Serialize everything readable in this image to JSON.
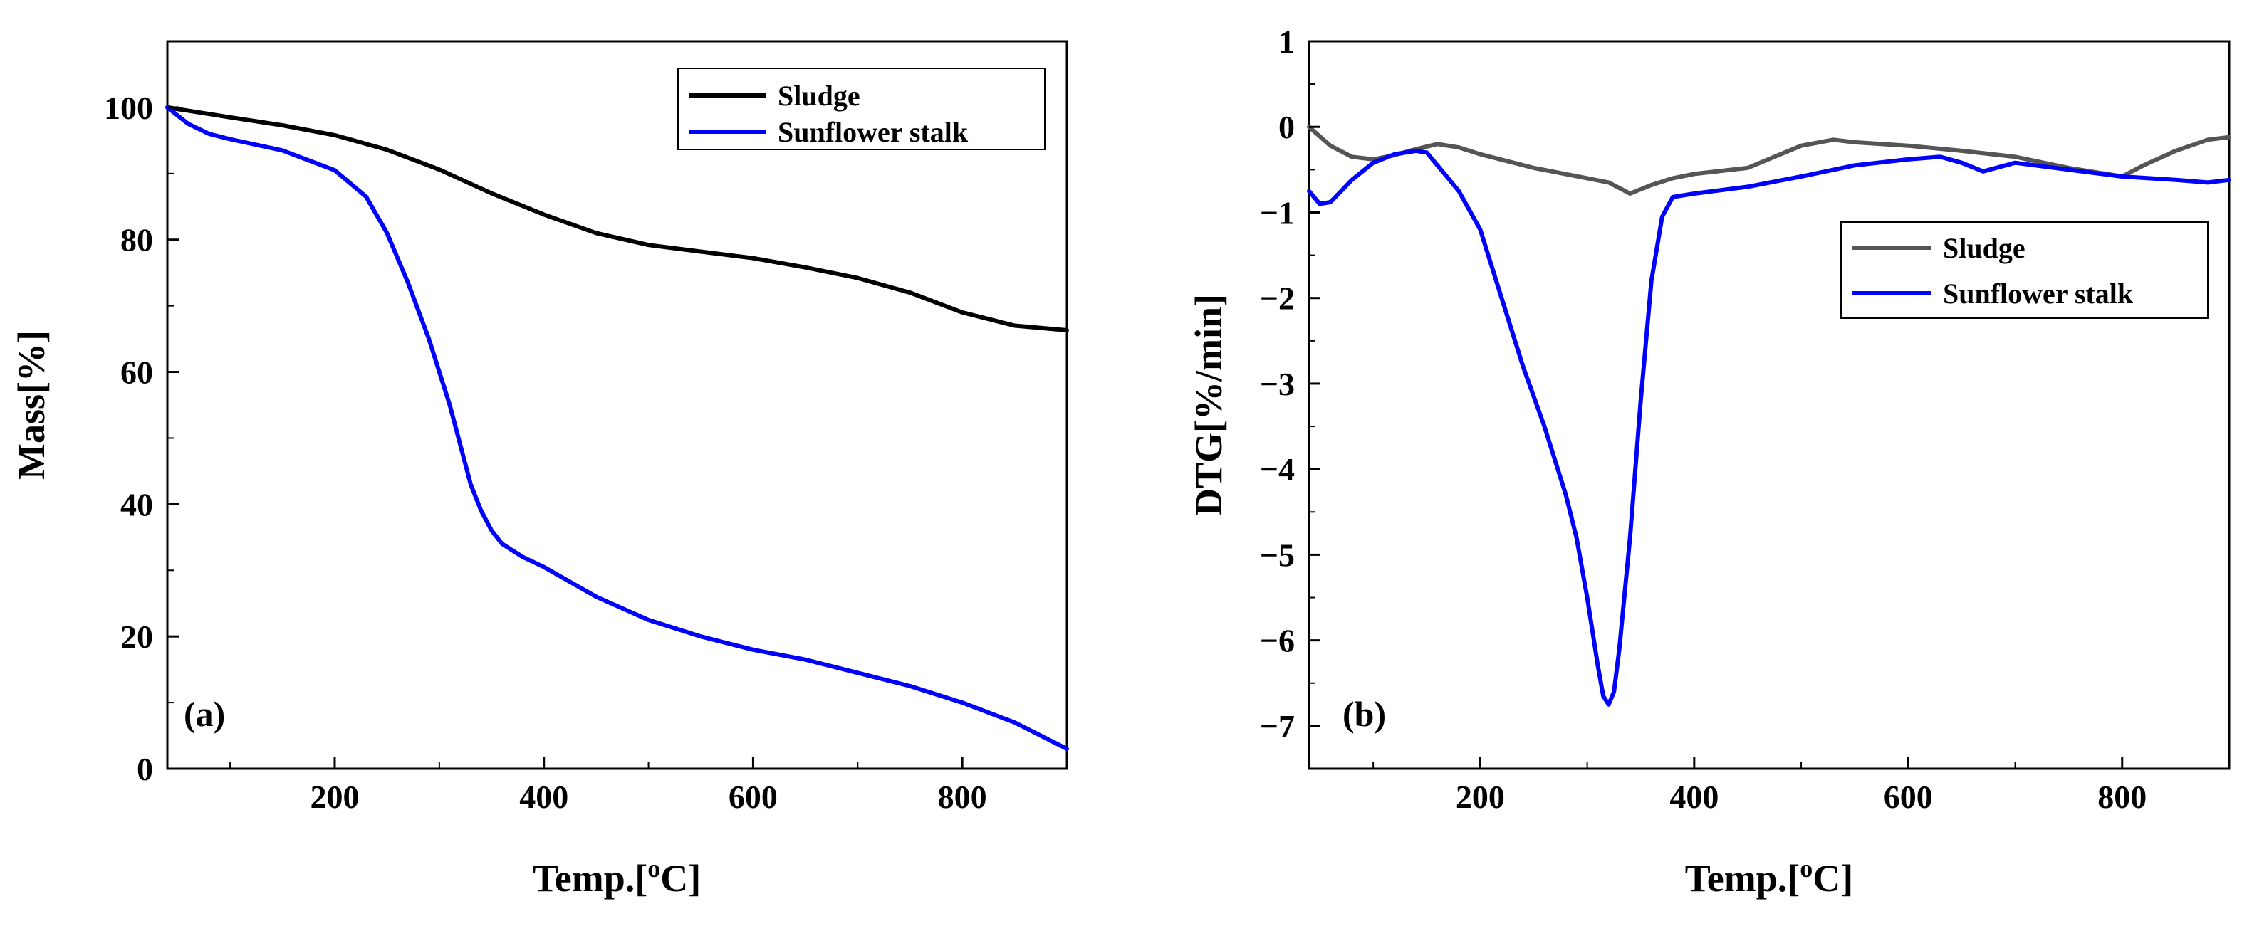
{
  "figure": {
    "background": "#ffffff"
  },
  "chart_data": [
    {
      "type": "line",
      "panel_label": "(a)",
      "xlabel_main": "Temp.[",
      "xlabel_sup": "o",
      "xlabel_end": "C]",
      "ylabel": "Mass[%]",
      "xlim": [
        40,
        900
      ],
      "ylim": [
        0,
        110
      ],
      "xticks": [
        200,
        400,
        600,
        800
      ],
      "yticks": [
        0,
        20,
        40,
        60,
        80,
        100
      ],
      "legend_position": "top-right",
      "series": [
        {
          "name": "Sludge",
          "color": "#000000",
          "x": [
            40,
            100,
            150,
            200,
            250,
            300,
            350,
            400,
            450,
            500,
            550,
            600,
            650,
            700,
            750,
            800,
            850,
            900
          ],
          "y": [
            100,
            98.5,
            97.3,
            95.8,
            93.6,
            90.6,
            87,
            83.8,
            81,
            79.2,
            78.2,
            77.2,
            75.8,
            74.2,
            72,
            69,
            67,
            66.3
          ]
        },
        {
          "name": "Sunflower stalk",
          "color": "#0000ff",
          "x": [
            40,
            60,
            80,
            100,
            150,
            200,
            230,
            250,
            270,
            290,
            310,
            320,
            330,
            340,
            350,
            360,
            380,
            400,
            450,
            500,
            550,
            600,
            650,
            700,
            750,
            800,
            850,
            900
          ],
          "y": [
            100,
            97.5,
            96,
            95.2,
            93.5,
            90.5,
            86.5,
            81,
            73.5,
            65,
            55,
            49,
            43,
            39,
            36,
            34,
            32,
            30.5,
            26,
            22.5,
            20,
            18,
            16.5,
            14.5,
            12.5,
            10,
            7,
            3
          ]
        }
      ]
    },
    {
      "type": "line",
      "panel_label": "(b)",
      "xlabel_main": "Temp.[",
      "xlabel_sup": "o",
      "xlabel_end": "C]",
      "ylabel": "DTG[%/min]",
      "xlim": [
        40,
        900
      ],
      "ylim": [
        -7.5,
        1
      ],
      "xticks": [
        200,
        400,
        600,
        800
      ],
      "yticks": [
        -7,
        -6,
        -5,
        -4,
        -3,
        -2,
        -1,
        0,
        1
      ],
      "ytick_labels": [
        "−7",
        "−6",
        "−5",
        "−4",
        "−3",
        "−2",
        "−1",
        "0",
        "1"
      ],
      "legend_position": "right",
      "series": [
        {
          "name": "Sludge",
          "color": "#555555",
          "x": [
            40,
            60,
            80,
            100,
            120,
            140,
            160,
            180,
            200,
            250,
            300,
            320,
            340,
            360,
            380,
            400,
            450,
            500,
            530,
            550,
            600,
            650,
            700,
            750,
            800,
            820,
            850,
            880,
            900
          ],
          "y": [
            0,
            -0.22,
            -0.35,
            -0.38,
            -0.33,
            -0.26,
            -0.2,
            -0.24,
            -0.32,
            -0.48,
            -0.6,
            -0.65,
            -0.78,
            -0.68,
            -0.6,
            -0.55,
            -0.48,
            -0.22,
            -0.15,
            -0.18,
            -0.22,
            -0.28,
            -0.35,
            -0.48,
            -0.58,
            -0.45,
            -0.28,
            -0.15,
            -0.12
          ]
        },
        {
          "name": "Sunflower stalk",
          "color": "#0000ff",
          "x": [
            40,
            50,
            60,
            70,
            80,
            100,
            120,
            140,
            150,
            160,
            180,
            200,
            220,
            240,
            260,
            280,
            290,
            300,
            310,
            315,
            320,
            325,
            330,
            340,
            350,
            360,
            370,
            380,
            400,
            450,
            500,
            550,
            600,
            630,
            650,
            670,
            700,
            750,
            800,
            850,
            880,
            900
          ],
          "y": [
            -0.75,
            -0.9,
            -0.88,
            -0.75,
            -0.62,
            -0.42,
            -0.32,
            -0.28,
            -0.3,
            -0.45,
            -0.75,
            -1.2,
            -2,
            -2.8,
            -3.5,
            -4.3,
            -4.8,
            -5.5,
            -6.3,
            -6.65,
            -6.75,
            -6.6,
            -6.1,
            -4.8,
            -3.2,
            -1.8,
            -1.05,
            -0.82,
            -0.78,
            -0.7,
            -0.58,
            -0.45,
            -0.38,
            -0.35,
            -0.42,
            -0.52,
            -0.42,
            -0.5,
            -0.58,
            -0.62,
            -0.65,
            -0.62
          ]
        }
      ]
    }
  ]
}
